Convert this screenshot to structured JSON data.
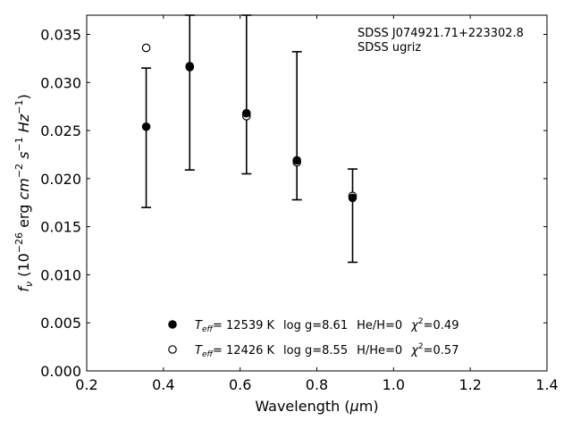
{
  "chart_data": {
    "type": "scatter",
    "annotation": {
      "line1": "SDSS J074921.71+223302.8",
      "line2": "SDSS ugriz"
    },
    "xlabel": "Wavelength (μm)",
    "ylabel": "f_ν (10^-26 erg cm^-2 s^-1 Hz^-1)",
    "xlim": [
      0.2,
      1.4
    ],
    "ylim": [
      0.0,
      0.037
    ],
    "xticks": [
      "0.2",
      "0.4",
      "0.6",
      "0.8",
      "1.0",
      "1.2",
      "1.4"
    ],
    "yticks": [
      "0.000",
      "0.005",
      "0.010",
      "0.015",
      "0.020",
      "0.025",
      "0.030",
      "0.035"
    ],
    "grid": false,
    "legend_position": "bottom-center",
    "observed": {
      "x": [
        0.3551,
        0.4686,
        0.6166,
        0.748,
        0.8932
      ],
      "y": [
        0.0254,
        0.0317,
        0.0268,
        0.0219,
        0.018
      ],
      "yerr_low": [
        0.017,
        0.0209,
        0.0205,
        0.0178,
        0.0113
      ],
      "yerr_high": [
        0.0315,
        0.037,
        0.037,
        0.0332,
        0.021
      ]
    },
    "series": [
      {
        "marker": "filled-circle",
        "x": [
          0.3551,
          0.4686,
          0.6166,
          0.748,
          0.8932
        ],
        "y": [
          0.0254,
          0.0317,
          0.0268,
          0.0219,
          0.018
        ],
        "label": {
          "teff_value": "= 12539 K",
          "logg": "log g=8.61",
          "comp": "He/H=0",
          "chi2": "=0.49"
        }
      },
      {
        "marker": "open-circle",
        "x": [
          0.3551,
          0.4686,
          0.6166,
          0.748,
          0.8932
        ],
        "y": [
          0.0336,
          0.0316,
          0.0265,
          0.0217,
          0.0182
        ],
        "label": {
          "teff_value": "= 12426 K",
          "logg": "log g=8.55",
          "comp": "H/He=0",
          "chi2": "=0.57"
        }
      }
    ]
  }
}
